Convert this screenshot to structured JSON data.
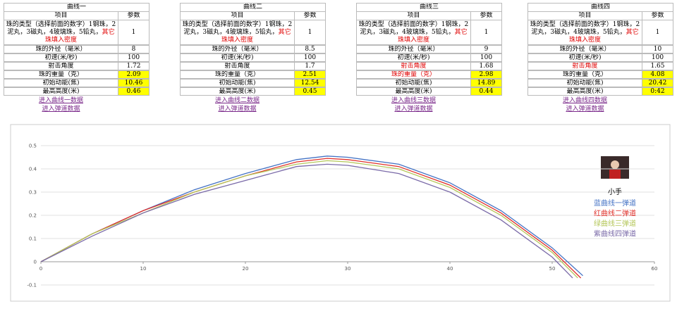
{
  "tables": [
    {
      "title": "曲线一",
      "header": [
        "项目",
        "参数"
      ],
      "rows": [
        {
          "label": "珠的类型（选择前面的数字）1钢珠，2泥丸，3磁丸，4玻璃珠，5铅丸，",
          "note": "其它珠填入密度",
          "value": 1
        },
        {
          "label": "珠的外径（毫米）",
          "value": 8
        },
        {
          "label": "初速(米/秒)",
          "value": 100
        },
        {
          "label": "射击角度",
          "value": 1.72
        },
        {
          "label": "珠的重量（克）",
          "value": 2.09,
          "highlight": true
        },
        {
          "label": "初始动能(焦)",
          "value": 10.46,
          "highlight": true
        },
        {
          "label": "最高高度(米)",
          "value": 0.46,
          "highlight": true
        }
      ],
      "links": [
        "进入曲线一数据",
        "进入弹道数据"
      ]
    },
    {
      "title": "曲线二",
      "header": [
        "项目",
        "参数"
      ],
      "rows": [
        {
          "label": "珠的类型（选择前面的数字）1钢珠，2泥丸，3磁丸，4玻璃珠，5铅丸，",
          "note": "其它珠填入密度",
          "value": 1
        },
        {
          "label": "珠的外径（毫米）",
          "value": 8.5
        },
        {
          "label": "初速(米/秒)",
          "value": 100
        },
        {
          "label": "射击角度",
          "value": 1.7
        },
        {
          "label": "珠的重量（克）",
          "value": 2.51,
          "highlight": true
        },
        {
          "label": "初始动能(焦)",
          "value": 12.54,
          "highlight": true
        },
        {
          "label": "最高高度(米)",
          "value": 0.45,
          "highlight": true
        }
      ],
      "links": [
        "进入曲线二数据",
        "进入弹道数据"
      ]
    },
    {
      "title": "曲线三",
      "header": [
        "项目",
        "参数"
      ],
      "rows": [
        {
          "label": "珠的类型（选择前面的数字）1钢珠，2泥丸，3磁丸，4玻璃珠，5铅丸，",
          "note": "其它珠填入密度",
          "value": 1
        },
        {
          "label": "珠的外径（毫米）",
          "value": 9
        },
        {
          "label": "初速(米/秒)",
          "value": 100
        },
        {
          "label": "射击角度",
          "value": 1.68,
          "red": true
        },
        {
          "label": "珠的重量（克）",
          "value": 2.98,
          "highlight": true,
          "red": true
        },
        {
          "label": "初始动能(焦)",
          "value": 14.89,
          "highlight": true
        },
        {
          "label": "最高高度(米)",
          "value": 0.44,
          "highlight": true
        }
      ],
      "links": [
        "进入曲线三数据",
        "进入弹道数据"
      ]
    },
    {
      "title": "曲线四",
      "header": [
        "项目",
        "参数"
      ],
      "rows": [
        {
          "label": "珠的类型（选择前面的数字）1钢珠，2泥丸，3磁丸，4玻璃珠，5铅丸，",
          "note": "其它珠填入密度",
          "value": 1
        },
        {
          "label": "珠的外径（毫米）",
          "value": 10
        },
        {
          "label": "初速(米/秒)",
          "value": 100
        },
        {
          "label": "射击角度",
          "value": 1.65,
          "red": true
        },
        {
          "label": "珠的重量（克）",
          "value": 4.08,
          "highlight": true
        },
        {
          "label": "初始动能(焦)",
          "value": 20.42,
          "highlight": true
        },
        {
          "label": "最高高度(米)",
          "value": "0:42",
          "highlight": true
        }
      ],
      "links": [
        "进入曲线四数据",
        "进入弹道数据"
      ]
    }
  ],
  "chart_data": {
    "type": "line",
    "legend_title": "小手",
    "xlim": [
      0,
      60
    ],
    "xticks": [
      0,
      10,
      20,
      30,
      40,
      50,
      60
    ],
    "ylim": [
      -0.1,
      0.5
    ],
    "yticks": [
      -0.1,
      0,
      0.1,
      0.2,
      0.3,
      0.4,
      0.5
    ],
    "grid": true,
    "series": [
      {
        "name": "蓝曲线一弹道",
        "color": "#4472c4",
        "x": [
          0,
          5,
          10,
          15,
          20,
          25,
          28,
          30,
          35,
          40,
          45,
          50,
          53
        ],
        "values": [
          0,
          0.12,
          0.22,
          0.31,
          0.38,
          0.44,
          0.455,
          0.45,
          0.42,
          0.34,
          0.22,
          0.06,
          -0.06
        ]
      },
      {
        "name": "红曲线二弹道",
        "color": "#e0302a",
        "x": [
          0,
          5,
          10,
          15,
          20,
          25,
          28,
          30,
          35,
          40,
          45,
          50,
          52.8
        ],
        "values": [
          0,
          0.12,
          0.22,
          0.3,
          0.37,
          0.43,
          0.445,
          0.44,
          0.41,
          0.33,
          0.21,
          0.05,
          -0.07
        ]
      },
      {
        "name": "绿曲线三弹道",
        "color": "#b5c75a",
        "x": [
          0,
          5,
          10,
          15,
          20,
          25,
          28,
          30,
          35,
          40,
          45,
          50,
          52.5
        ],
        "values": [
          0,
          0.12,
          0.21,
          0.3,
          0.37,
          0.42,
          0.435,
          0.43,
          0.4,
          0.32,
          0.2,
          0.04,
          -0.07
        ]
      },
      {
        "name": "紫曲线四弹道",
        "color": "#7a6aa8",
        "x": [
          0,
          5,
          10,
          15,
          20,
          25,
          28,
          30,
          35,
          40,
          45,
          50,
          52
        ],
        "values": [
          0,
          0.11,
          0.21,
          0.29,
          0.35,
          0.41,
          0.42,
          0.415,
          0.38,
          0.3,
          0.18,
          0.02,
          -0.07
        ]
      }
    ]
  }
}
